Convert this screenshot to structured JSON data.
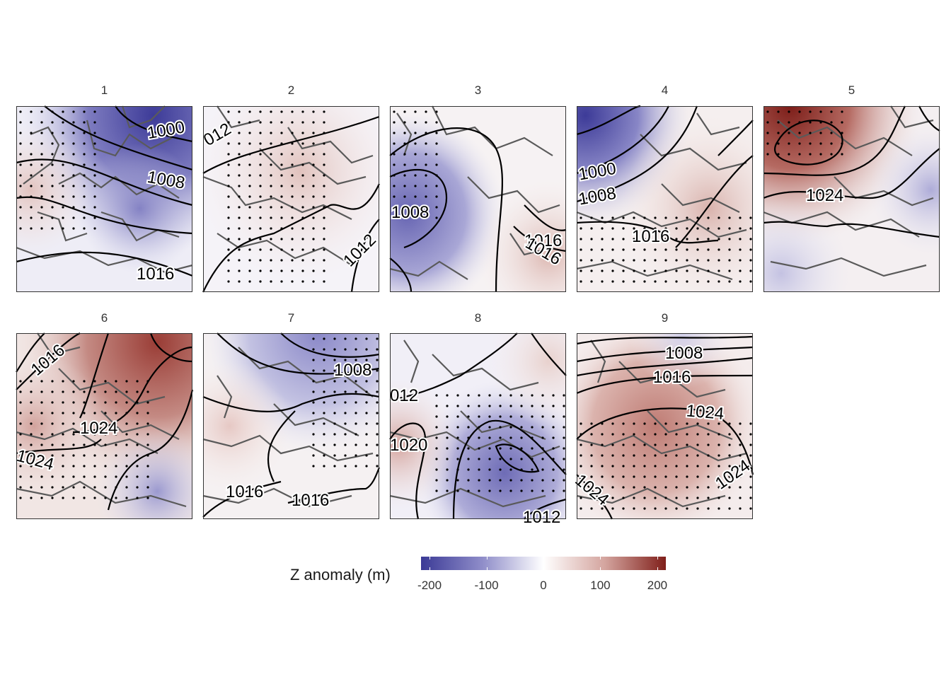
{
  "panels": [
    {
      "title": "1",
      "contour_labels": [
        "1000",
        "1008",
        "1016"
      ]
    },
    {
      "title": "2",
      "contour_labels": [
        "012",
        "1012"
      ]
    },
    {
      "title": "3",
      "contour_labels": [
        "1008",
        "1016",
        "1016"
      ]
    },
    {
      "title": "4",
      "contour_labels": [
        "1000",
        "1008",
        "1016"
      ]
    },
    {
      "title": "5",
      "contour_labels": [
        "1024"
      ]
    },
    {
      "title": "6",
      "contour_labels": [
        "1016",
        "1024",
        "1024"
      ]
    },
    {
      "title": "7",
      "contour_labels": [
        "1008",
        "1016",
        "1016"
      ]
    },
    {
      "title": "8",
      "contour_labels": [
        "012",
        "1020",
        "1012"
      ]
    },
    {
      "title": "9",
      "contour_labels": [
        "1008",
        "1016",
        "1024",
        "1024",
        "1024"
      ]
    }
  ],
  "legend": {
    "title": "Z anomaly (m)",
    "ticks": [
      "-200",
      "-100",
      "0",
      "100",
      "200"
    ],
    "tick_values": [
      -200,
      -100,
      0,
      100,
      200
    ],
    "range": [
      -215,
      215
    ],
    "colors": {
      "low": "#3b3a96",
      "mid": "#ffffff",
      "high": "#801f1a"
    }
  }
}
